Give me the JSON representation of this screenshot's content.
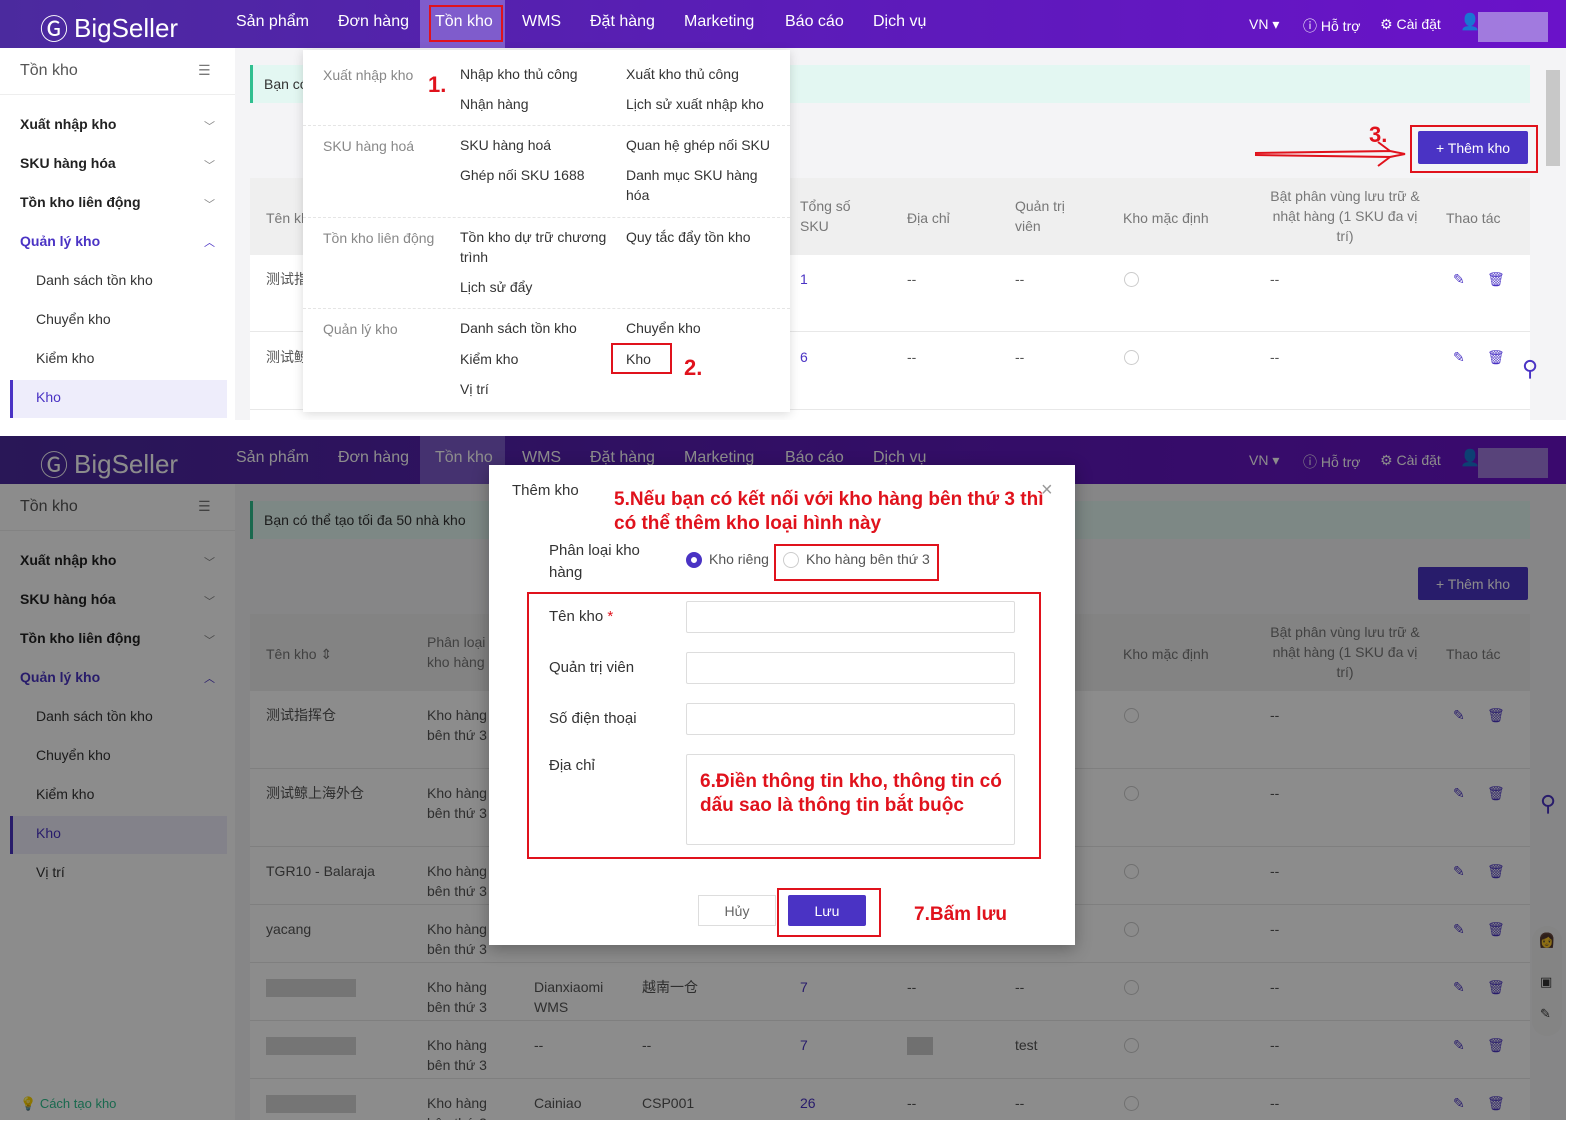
{
  "nav": {
    "logo": "BigSeller",
    "items": [
      "Sản phẩm",
      "Đơn hàng",
      "Tồn kho",
      "WMS",
      "Đặt hàng",
      "Marketing",
      "Báo cáo",
      "Dịch vụ"
    ],
    "lang": "VN",
    "help": "Hỗ trợ",
    "settings": "Cài đặt",
    "accent": "#4a33c4"
  },
  "sidebar": {
    "title": "Tồn kho",
    "groups": [
      "Xuất nhập kho",
      "SKU hàng hóa",
      "Tồn kho liên động",
      "Quản lý kho"
    ],
    "subitems": [
      "Danh sách tồn kho",
      "Chuyển kho",
      "Kiểm kho",
      "Kho",
      "Vị trí"
    ],
    "footer_link": "Cách tạo kho"
  },
  "menu": {
    "sections": [
      {
        "label": "Xuất nhập kho",
        "items": [
          "Nhập kho thủ công",
          "Xuất kho thủ công",
          "Nhận hàng",
          "Lịch sử xuất nhập kho"
        ]
      },
      {
        "label": "SKU hàng hoá",
        "items": [
          "SKU hàng hoá",
          "Quan hệ ghép nối SKU",
          "Ghép nối SKU 1688",
          "Danh mục SKU hàng hóa"
        ]
      },
      {
        "label": "Tồn kho liên động",
        "items": [
          "Tồn kho dự trữ chương trình",
          "Quy tắc đẩy tồn kho",
          "Lịch sử đẩy"
        ]
      },
      {
        "label": "Quản lý kho",
        "items": [
          "Danh sách tồn kho",
          "Chuyển kho",
          "Kiểm kho",
          "Kho",
          "Vị trí"
        ]
      }
    ]
  },
  "page": {
    "notice_short": "Bạn có",
    "notice": "Bạn có thể tạo tối đa 50 nhà kho",
    "add_button": "+ Thêm kho"
  },
  "table": {
    "headers": [
      "Tên kho",
      "Phân loại kho hàng",
      "",
      "",
      "Tổng số SKU",
      "Địa chỉ",
      "Quản trị viên",
      "Kho mặc định",
      "Bật phân vùng lưu trữ & nhật hàng (1 SKU đa vị trí)",
      "Thao tác"
    ],
    "panel1_rows": [
      {
        "name": "测试指",
        "sku": "1",
        "addr": "--",
        "admin": "--",
        "zone": "--"
      },
      {
        "name": "测试鲸",
        "sku": "6",
        "addr": "--",
        "admin": "--",
        "zone": "--"
      }
    ],
    "rows": [
      {
        "name": "测试指挥仓",
        "type": "Kho hàng bên thứ 3",
        "c3": "",
        "c4": "",
        "sku": "",
        "addr": "",
        "admin": "",
        "zone": "--"
      },
      {
        "name": "测试鲸上海外仓",
        "type": "Kho hàng bên thứ 3",
        "c3": "",
        "c4": "",
        "sku": "",
        "addr": "",
        "admin": "",
        "zone": "--"
      },
      {
        "name": "TGR10 - Balaraja",
        "type": "Kho hàng bên thứ 3",
        "c3": "",
        "c4": "",
        "sku": "",
        "addr": "",
        "admin": "",
        "zone": "--"
      },
      {
        "name": "yacang",
        "type": "Kho hàng bên thứ 3",
        "c3": "",
        "c4": "",
        "sku": "",
        "addr": "",
        "admin": "",
        "zone": "--"
      },
      {
        "name": "",
        "type": "Kho hàng bên thứ 3",
        "c3": "Dianxiaomi WMS",
        "c4": "越南一仓",
        "sku": "7",
        "addr": "--",
        "admin": "--",
        "zone": "--"
      },
      {
        "name": "",
        "type": "Kho hàng bên thứ 3",
        "c3": "--",
        "c4": "--",
        "sku": "7",
        "addr": "",
        "admin": "test",
        "zone": "--"
      },
      {
        "name": "",
        "type": "Kho hàng bên thứ 3",
        "c3": "Cainiao",
        "c4": "CSP001",
        "sku": "26",
        "addr": "--",
        "admin": "--",
        "zone": "--"
      }
    ]
  },
  "modal": {
    "title": "Thêm kho",
    "category_label": "Phân loại kho hàng",
    "options": [
      "Kho riêng",
      "Kho hàng bên thứ 3"
    ],
    "selected": "Kho riêng",
    "fields": [
      "Tên kho",
      "Quản trị viên",
      "Số điện thoại",
      "Địa chỉ"
    ],
    "required_mark": "*",
    "cancel": "Hủy",
    "save": "Lưu"
  },
  "annotations": {
    "s1": "1.",
    "s2": "2.",
    "s3": "3.",
    "s5": "5.Nếu bạn có kết nối với kho hàng bên thứ 3 thì có thể thêm kho loại hình này",
    "s6": "6.Điền thông tin kho, thông tin có dấu sao là thông tin bắt buộc",
    "s7": "7.Bấm lưu",
    "color": "#e0121c"
  }
}
